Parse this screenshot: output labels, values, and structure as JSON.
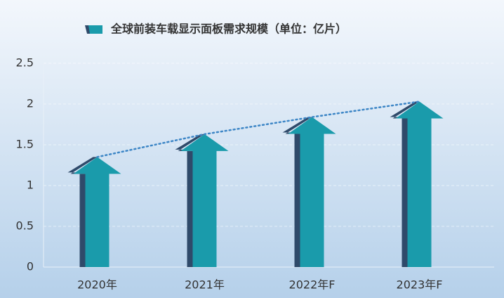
{
  "chart_data": {
    "type": "arrow-bar",
    "categories": [
      "2020年",
      "2021年",
      "2022年F",
      "2023年F"
    ],
    "series": [
      {
        "name": "全球前装车载显示面板需求规模（单位：亿片）",
        "color": "#1a9bab",
        "values": [
          1.35,
          1.63,
          1.84,
          2.03
        ]
      }
    ],
    "ylim": [
      0,
      2.5
    ],
    "yticks": [
      0,
      {
        "value": 0.5,
        "label": "0.5"
      },
      1,
      {
        "value": 1.5,
        "label": "1.5"
      },
      2,
      {
        "value": 2.5,
        "label": "2.5"
      }
    ],
    "grid": true,
    "trendline": true,
    "legend": "top"
  }
}
